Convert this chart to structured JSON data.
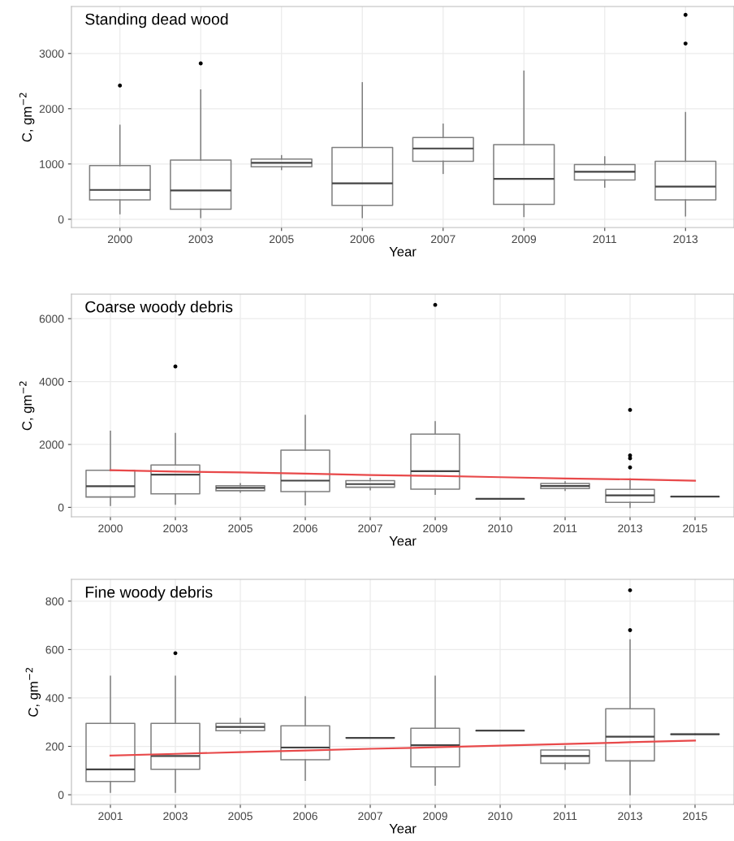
{
  "chart_data": [
    {
      "type": "box",
      "xlabel": "Year",
      "ylabel": "C, gm$^{−2}$",
      "annotations": [
        "Standing dead wood"
      ],
      "grid": true,
      "legend": false,
      "color": "#7f7f7f",
      "categories": [
        "2000",
        "2003",
        "2005",
        "2006",
        "2007",
        "2009",
        "2011",
        "2013"
      ],
      "ylim": [
        -150,
        3850
      ],
      "yticks": [
        0,
        1000,
        2000,
        3000
      ],
      "boxes": [
        {
          "low": 100,
          "q1": 350,
          "median": 530,
          "q3": 970,
          "high": 1700,
          "outliers": [
            2420
          ]
        },
        {
          "low": 30,
          "q1": 180,
          "median": 520,
          "q3": 1070,
          "high": 2340,
          "outliers": [
            2820
          ]
        },
        {
          "low": 900,
          "q1": 950,
          "median": 1020,
          "q3": 1090,
          "high": 1150
        },
        {
          "low": 30,
          "q1": 250,
          "median": 650,
          "q3": 1300,
          "high": 2470
        },
        {
          "low": 830,
          "q1": 1050,
          "median": 1280,
          "q3": 1480,
          "high": 1720
        },
        {
          "low": 50,
          "q1": 270,
          "median": 730,
          "q3": 1350,
          "high": 2680
        },
        {
          "low": 580,
          "q1": 710,
          "median": 860,
          "q3": 990,
          "high": 1130
        },
        {
          "low": 60,
          "q1": 350,
          "median": 590,
          "q3": 1050,
          "high": 1930,
          "outliers": [
            3180,
            3700
          ]
        }
      ]
    },
    {
      "type": "box",
      "xlabel": "Year",
      "ylabel": "C, gm$^{−2}$",
      "annotations": [
        "Coarse woody debris"
      ],
      "grid": true,
      "legend": false,
      "color": "#7f7f7f",
      "categories": [
        "2000",
        "2003",
        "2005",
        "2006",
        "2007",
        "2009",
        "2010",
        "2011",
        "2013",
        "2015"
      ],
      "ylim": [
        -300,
        6780
      ],
      "yticks": [
        0,
        2000,
        4000,
        6000
      ],
      "boxes": [
        {
          "low": 60,
          "q1": 330,
          "median": 670,
          "q3": 1180,
          "high": 2420
        },
        {
          "low": 100,
          "q1": 430,
          "median": 1040,
          "q3": 1350,
          "high": 2350,
          "outliers": [
            4480
          ]
        },
        {
          "low": 480,
          "q1": 530,
          "median": 620,
          "q3": 690,
          "high": 750
        },
        {
          "low": 80,
          "q1": 500,
          "median": 850,
          "q3": 1820,
          "high": 2920
        },
        {
          "low": 560,
          "q1": 640,
          "median": 740,
          "q3": 850,
          "high": 920
        },
        {
          "low": 420,
          "q1": 580,
          "median": 1150,
          "q3": 2330,
          "high": 2720,
          "outliers": [
            6440
          ]
        },
        {
          "low": 270,
          "q1": 270,
          "median": 270,
          "q3": 270,
          "high": 270
        },
        {
          "low": 540,
          "q1": 600,
          "median": 680,
          "q3": 760,
          "high": 810
        },
        {
          "low": 0,
          "q1": 160,
          "median": 380,
          "q3": 570,
          "high": 900,
          "outliers": [
            1270,
            1560,
            1650,
            3100
          ]
        },
        {
          "low": 340,
          "q1": 340,
          "median": 340,
          "q3": 340,
          "high": 340
        }
      ],
      "series": [
        {
          "type": "line",
          "color": "#e8494a",
          "values": [
            1180,
            1140,
            1110,
            1070,
            1030,
            1000,
            960,
            920,
            890,
            850
          ]
        }
      ]
    },
    {
      "type": "box",
      "xlabel": "Year",
      "ylabel": "C, gm$^{−2}$",
      "annotations": [
        "Fine woody debris"
      ],
      "grid": true,
      "legend": false,
      "color": "#7f7f7f",
      "categories": [
        "2001",
        "2003",
        "2005",
        "2006",
        "2007",
        "2009",
        "2010",
        "2011",
        "2013",
        "2015"
      ],
      "ylim": [
        -40,
        890
      ],
      "yticks": [
        0,
        200,
        400,
        600,
        800
      ],
      "boxes": [
        {
          "low": 10,
          "q1": 55,
          "median": 105,
          "q3": 295,
          "high": 490
        },
        {
          "low": 10,
          "q1": 105,
          "median": 160,
          "q3": 295,
          "high": 490,
          "outliers": [
            585
          ]
        },
        {
          "low": 255,
          "q1": 265,
          "median": 280,
          "q3": 295,
          "high": 315
        },
        {
          "low": 60,
          "q1": 145,
          "median": 195,
          "q3": 285,
          "high": 405
        },
        {
          "low": 235,
          "q1": 235,
          "median": 235,
          "q3": 235,
          "high": 235
        },
        {
          "low": 40,
          "q1": 115,
          "median": 205,
          "q3": 275,
          "high": 490
        },
        {
          "low": 265,
          "q1": 265,
          "median": 265,
          "q3": 265,
          "high": 265
        },
        {
          "low": 105,
          "q1": 130,
          "median": 160,
          "q3": 185,
          "high": 200
        },
        {
          "low": 0,
          "q1": 140,
          "median": 240,
          "q3": 355,
          "high": 640,
          "outliers": [
            680,
            845
          ]
        },
        {
          "low": 250,
          "q1": 250,
          "median": 250,
          "q3": 250,
          "high": 250
        }
      ],
      "series": [
        {
          "type": "line",
          "color": "#e8494a",
          "values": [
            162,
            169,
            176,
            183,
            190,
            196,
            203,
            210,
            217,
            224
          ]
        }
      ]
    }
  ]
}
